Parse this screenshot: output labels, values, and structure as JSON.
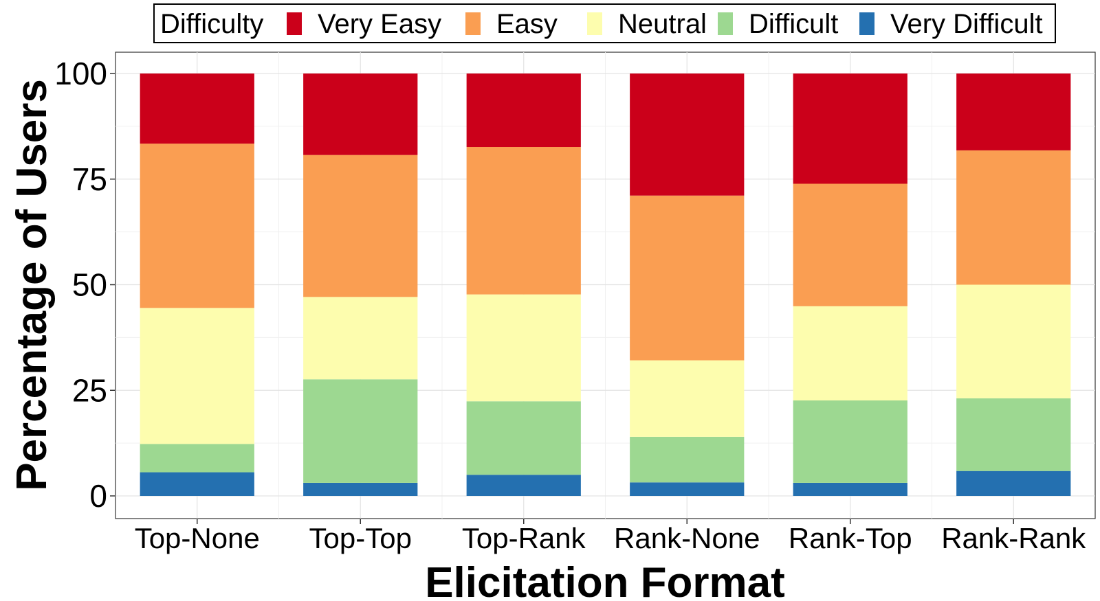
{
  "chart_data": {
    "type": "bar",
    "stacked": true,
    "categories": [
      "Top-None",
      "Top-Top",
      "Top-Rank",
      "Rank-None",
      "Rank-Top",
      "Rank-Rank"
    ],
    "xlabel": "Elicitation Format",
    "ylabel": "Percentage of Users",
    "ylim": [
      0,
      105
    ],
    "yticks": [
      "0",
      "25",
      "50",
      "75",
      "100"
    ],
    "grid": true,
    "legend": {
      "title": "Difficulty",
      "position": "top"
    },
    "series": [
      {
        "name": "Very Difficult",
        "color": "#2470B0",
        "values": [
          5.6,
          3.1,
          5.0,
          3.2,
          3.1,
          5.9
        ]
      },
      {
        "name": "Difficult",
        "color": "#9DD891",
        "values": [
          6.7,
          24.5,
          17.4,
          10.8,
          19.5,
          17.2
        ]
      },
      {
        "name": "Neutral",
        "color": "#FDFDAE",
        "values": [
          32.2,
          19.5,
          25.3,
          18.1,
          22.3,
          26.9
        ]
      },
      {
        "name": "Easy",
        "color": "#FA9E52",
        "values": [
          38.9,
          33.6,
          34.9,
          39.0,
          29.0,
          31.8
        ]
      },
      {
        "name": "Very Easy",
        "color": "#CB001A",
        "values": [
          16.6,
          19.3,
          17.4,
          28.9,
          26.1,
          18.2
        ]
      }
    ],
    "legend_order": [
      "Very Easy",
      "Easy",
      "Neutral",
      "Difficult",
      "Very Difficult"
    ]
  }
}
